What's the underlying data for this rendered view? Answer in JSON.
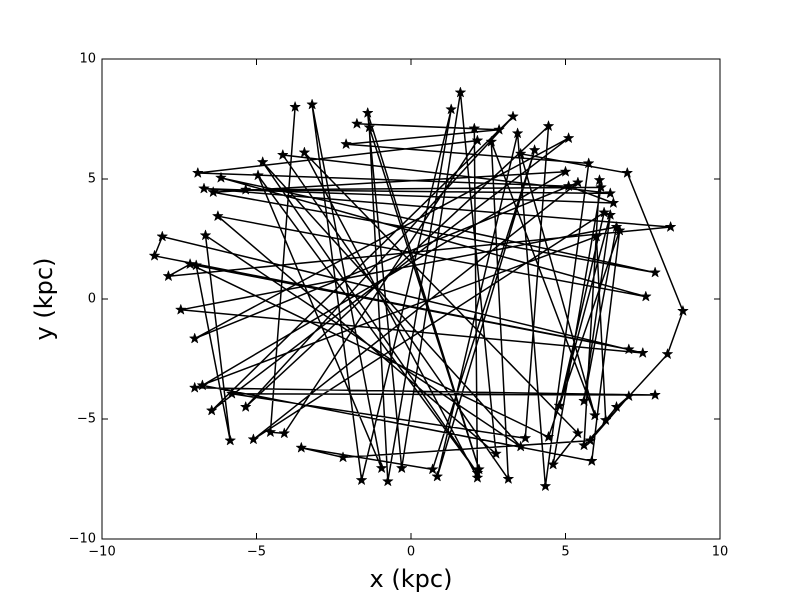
{
  "chart_data": {
    "type": "line",
    "xlabel": "x (kpc)",
    "ylabel": "y (kpc)",
    "x": [
      -3.75,
      -4.55,
      -4.1,
      2.15,
      -6.9,
      5.1,
      6.55,
      -6.7,
      8.4,
      -7.85,
      -7.15,
      4.45,
      6.75,
      5.85,
      -6.75,
      5.0,
      -6.4,
      7.9,
      -6.15,
      7.6,
      -6.25,
      2.75,
      1.6,
      -0.3,
      -1.4,
      2.2,
      -1.35,
      -0.75,
      1.3,
      -1.6,
      -3.2,
      -0.95,
      -4.95,
      2.15,
      -4.8,
      3.55,
      -6.65,
      -5.85,
      -6.95,
      7.05,
      -8.3,
      -8.05,
      7.5,
      -7.45,
      6.65,
      5.6,
      6.45,
      4.8,
      6.25,
      -5.1,
      5.4,
      -7.0,
      5.1,
      -6.45,
      3.3,
      -5.35,
      4.45,
      3.7,
      -5.8,
      7.9,
      -7.0,
      6.0,
      6.3,
      6.65,
      7.05,
      5.8,
      -2.2,
      -3.55,
      0.7,
      4.0,
      0.85,
      3.45,
      4.35,
      5.75,
      -2.1,
      2.85,
      -1.75,
      2.05,
      2.15,
      -3.45,
      5.4,
      4.6,
      6.15,
      -5.35,
      6.45,
      -4.15,
      3.15,
      2.6,
      5.95,
      3.55,
      7.0,
      8.8,
      8.3,
      5.6,
      6.1
    ],
    "series": [
      {
        "color": "#000000",
        "marker": "star",
        "values": [
          8.0,
          -5.55,
          -5.6,
          6.6,
          5.25,
          4.7,
          4.0,
          4.6,
          3.0,
          0.95,
          1.45,
          -5.75,
          2.85,
          -6.75,
          -3.6,
          5.3,
          4.45,
          1.1,
          5.05,
          0.1,
          3.45,
          -6.45,
          8.6,
          -7.05,
          7.75,
          -7.1,
          7.15,
          -7.6,
          7.9,
          -7.55,
          8.1,
          -7.05,
          5.15,
          -7.25,
          5.7,
          -6.15,
          2.65,
          -5.9,
          1.4,
          -2.1,
          1.8,
          2.6,
          -2.25,
          -0.45,
          3.0,
          -4.25,
          3.5,
          -4.45,
          3.6,
          -5.85,
          4.85,
          -1.65,
          6.7,
          -4.65,
          7.6,
          -4.5,
          7.2,
          -5.8,
          -3.95,
          -4.0,
          -3.7,
          2.6,
          -5.05,
          -4.5,
          -4.05,
          -5.9,
          -6.6,
          -6.2,
          -7.1,
          6.2,
          -7.4,
          6.9,
          -7.8,
          5.65,
          6.45,
          7.05,
          7.3,
          7.1,
          -7.45,
          6.1,
          -5.6,
          -6.9,
          4.65,
          4.55,
          4.4,
          6.0,
          -7.5,
          6.55,
          -4.85,
          6.05,
          5.25,
          -0.5,
          -2.3,
          -6.1,
          4.95
        ]
      }
    ],
    "xlim": [
      -10,
      10
    ],
    "ylim": [
      -10,
      10
    ],
    "xticks": [
      {
        "value": -10,
        "label": "−10"
      },
      {
        "value": -5,
        "label": "−5"
      },
      0,
      5,
      10
    ],
    "yticks": [
      {
        "value": -10,
        "label": "−10"
      },
      {
        "value": -5,
        "label": "−5"
      },
      0,
      5,
      10
    ],
    "grid": false
  }
}
